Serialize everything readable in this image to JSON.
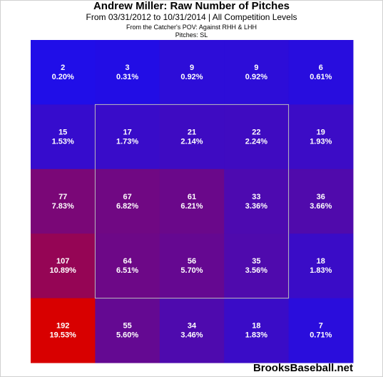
{
  "header": {
    "title": "Andrew Miller: Raw Number of Pitches",
    "subtitle": "From 03/31/2012 to 10/31/2014 | All Competition Levels",
    "pov": "From the Catcher's POV:  Against RHH & LHH",
    "pitches": "Pitches:  SL"
  },
  "watermark": "BrooksBaseball.net",
  "colors": {
    "low": "#1a0ef0",
    "high": "#d80000",
    "zone_border": "#bbbbbb",
    "text": "#ffffff"
  },
  "chart_data": {
    "type": "heatmap",
    "rows": 5,
    "cols": 5,
    "cells": [
      [
        {
          "count": 2,
          "pct": "0.20%"
        },
        {
          "count": 3,
          "pct": "0.31%"
        },
        {
          "count": 9,
          "pct": "0.92%"
        },
        {
          "count": 9,
          "pct": "0.92%"
        },
        {
          "count": 6,
          "pct": "0.61%"
        }
      ],
      [
        {
          "count": 15,
          "pct": "1.53%"
        },
        {
          "count": 17,
          "pct": "1.73%"
        },
        {
          "count": 21,
          "pct": "2.14%"
        },
        {
          "count": 22,
          "pct": "2.24%"
        },
        {
          "count": 19,
          "pct": "1.93%"
        }
      ],
      [
        {
          "count": 77,
          "pct": "7.83%"
        },
        {
          "count": 67,
          "pct": "6.82%"
        },
        {
          "count": 61,
          "pct": "6.21%"
        },
        {
          "count": 33,
          "pct": "3.36%"
        },
        {
          "count": 36,
          "pct": "3.66%"
        }
      ],
      [
        {
          "count": 107,
          "pct": "10.89%"
        },
        {
          "count": 64,
          "pct": "6.51%"
        },
        {
          "count": 56,
          "pct": "5.70%"
        },
        {
          "count": 35,
          "pct": "3.56%"
        },
        {
          "count": 18,
          "pct": "1.83%"
        }
      ],
      [
        {
          "count": 192,
          "pct": "19.53%"
        },
        {
          "count": 55,
          "pct": "5.60%"
        },
        {
          "count": 34,
          "pct": "3.46%"
        },
        {
          "count": 18,
          "pct": "1.83%"
        },
        {
          "count": 7,
          "pct": "0.71%"
        }
      ]
    ],
    "strike_zone": {
      "row_start": 1,
      "row_end": 3,
      "col_start": 1,
      "col_end": 3
    }
  }
}
